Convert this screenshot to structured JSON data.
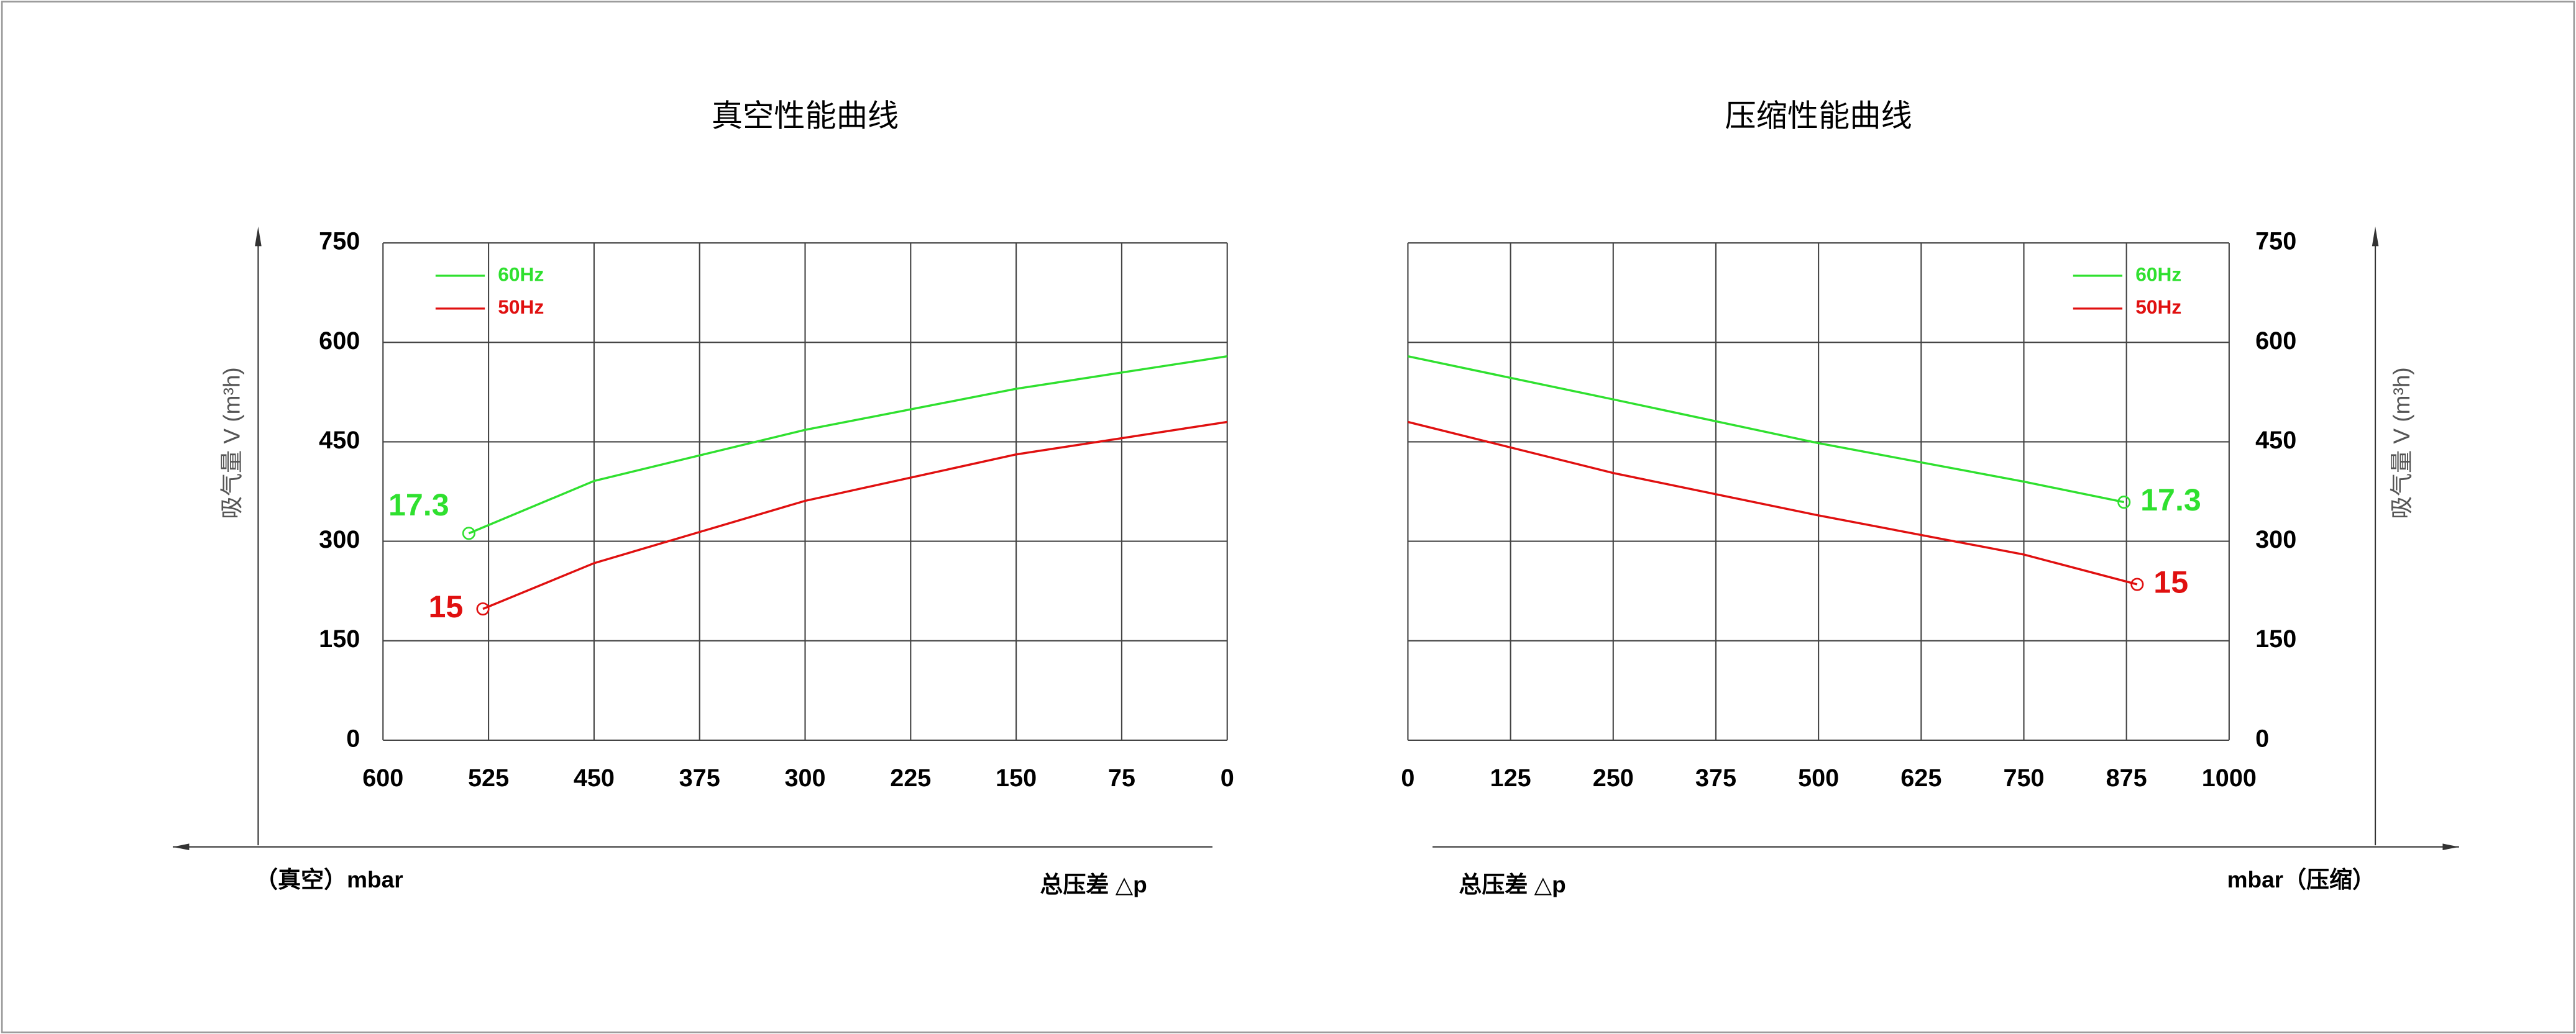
{
  "chart_data": [
    {
      "type": "line",
      "title": "真空性能曲线",
      "ylabel": "吸气量 V (m³h)",
      "xlabel_unit": "（真空）mbar",
      "xlabel": "总压差 △p",
      "xlim": [
        600,
        0
      ],
      "xticks": [
        600,
        525,
        450,
        375,
        300,
        225,
        150,
        75,
        0
      ],
      "ylim": [
        0,
        750
      ],
      "yticks": [
        0,
        150,
        300,
        450,
        600,
        750
      ],
      "y_axis_side": "left",
      "grid": true,
      "legend": "upper left",
      "series": [
        {
          "name": "60Hz",
          "color": "#2fe02f",
          "x": [
            539,
            450,
            300,
            150,
            0
          ],
          "values": [
            312,
            391,
            468,
            530,
            579
          ]
        },
        {
          "name": "50Hz",
          "color": "#e01010",
          "x": [
            529,
            450,
            300,
            150,
            0
          ],
          "values": [
            198,
            267,
            361,
            431,
            480
          ]
        }
      ],
      "annotations": [
        "17.3",
        "15"
      ]
    },
    {
      "type": "line",
      "title": "压缩性能曲线",
      "ylabel": "吸气量 V (m³h)",
      "xlabel_unit": "mbar（压缩）",
      "xlabel": "总压差 △p",
      "xlim": [
        0,
        1000
      ],
      "xticks": [
        0,
        125,
        250,
        375,
        500,
        625,
        750,
        875,
        1000
      ],
      "ylim": [
        0,
        750
      ],
      "yticks": [
        0,
        150,
        300,
        450,
        600,
        750
      ],
      "y_axis_side": "right",
      "grid": true,
      "legend": "upper right",
      "series": [
        {
          "name": "60Hz",
          "color": "#2fe02f",
          "x": [
            0,
            250,
            500,
            750,
            872
          ],
          "values": [
            579,
            514,
            448,
            390,
            359
          ]
        },
        {
          "name": "50Hz",
          "color": "#e01010",
          "x": [
            0,
            250,
            500,
            750,
            888
          ],
          "values": [
            480,
            403,
            339,
            280,
            235
          ]
        }
      ],
      "annotations": [
        "17.3",
        "15"
      ]
    }
  ]
}
